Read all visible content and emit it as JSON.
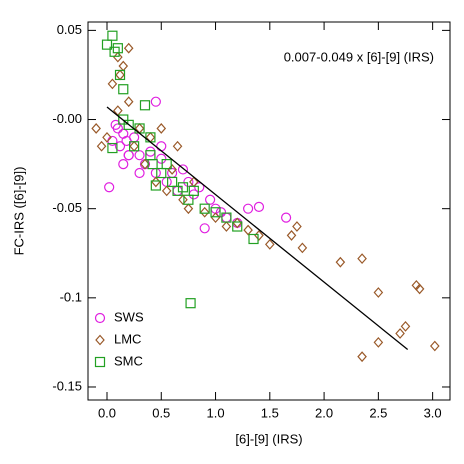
{
  "chart_data": {
    "type": "scatter",
    "annotation": "0.007-0.049 x [6]-[9] (IRS)",
    "xlabel": "[6]-[9] (IRS)",
    "ylabel": "FC-IRS ([6]-[9])",
    "xlim": [
      -0.175,
      3.16
    ],
    "ylim": [
      -0.1573,
      0.0547
    ],
    "xticks": [
      {
        "value": 0,
        "label": "0.0"
      },
      0.5,
      {
        "value": 1,
        "label": "1.0"
      },
      1.5,
      {
        "value": 2,
        "label": "2.0"
      },
      2.5,
      {
        "value": 3,
        "label": "3.0"
      }
    ],
    "yticks": [
      0.05,
      {
        "value": 0,
        "label": "-0.00"
      },
      -0.05,
      -0.1,
      -0.15
    ],
    "legend": "lower left",
    "fit": {
      "color": "#000000",
      "x": [
        0,
        2.77
      ],
      "y": [
        0.007,
        -0.129
      ]
    },
    "series": [
      {
        "name": "SWS",
        "color": "#e020e0",
        "marker": "circle",
        "x": [
          0.02,
          0.05,
          0.08,
          0.1,
          0.12,
          0.15,
          0.18,
          0.2,
          0.25,
          0.3,
          0.35,
          0.4,
          0.45,
          0.5,
          0.55,
          0.6,
          0.65,
          0.7,
          0.75,
          0.8,
          0.85,
          0.9,
          0.95,
          1.0,
          1.05,
          1.1,
          1.2,
          1.3,
          1.4,
          1.65,
          0.3,
          0.5,
          0.45,
          0.2,
          0.15
        ],
        "y": [
          -0.038,
          -0.012,
          -0.003,
          -0.005,
          -0.015,
          -0.008,
          -0.012,
          -0.02,
          -0.01,
          -0.02,
          -0.025,
          -0.018,
          -0.03,
          -0.022,
          -0.035,
          -0.03,
          -0.04,
          -0.028,
          -0.035,
          -0.042,
          -0.038,
          -0.061,
          -0.045,
          -0.05,
          -0.052,
          -0.055,
          -0.058,
          -0.05,
          -0.049,
          -0.055,
          -0.03,
          -0.015,
          0.01,
          -0.02,
          -0.025
        ]
      },
      {
        "name": "LMC",
        "color": "#9a5a2a",
        "marker": "diamond",
        "x": [
          -0.1,
          -0.05,
          0.0,
          0.05,
          0.1,
          0.12,
          0.15,
          0.2,
          0.25,
          0.3,
          0.35,
          0.4,
          0.45,
          0.5,
          0.55,
          0.6,
          0.7,
          0.75,
          0.8,
          0.9,
          1.0,
          1.1,
          1.2,
          1.3,
          1.4,
          1.5,
          1.7,
          1.75,
          1.8,
          2.15,
          2.35,
          2.35,
          2.5,
          2.5,
          2.7,
          2.75,
          2.85,
          2.88,
          3.02,
          0.1,
          0.2,
          0.65
        ],
        "y": [
          -0.005,
          -0.015,
          -0.01,
          0.02,
          0.035,
          0.025,
          0.03,
          0.01,
          -0.015,
          -0.005,
          -0.025,
          -0.01,
          -0.035,
          -0.005,
          -0.04,
          -0.028,
          -0.045,
          -0.05,
          -0.035,
          -0.052,
          -0.055,
          -0.06,
          -0.058,
          -0.062,
          -0.065,
          -0.07,
          -0.065,
          -0.06,
          -0.072,
          -0.08,
          -0.078,
          -0.133,
          -0.097,
          -0.125,
          -0.12,
          -0.116,
          -0.093,
          -0.095,
          -0.127,
          0.005,
          0.04,
          -0.015
        ]
      },
      {
        "name": "SMC",
        "color": "#22a022",
        "marker": "square",
        "x": [
          0.0,
          0.05,
          0.07,
          0.1,
          0.12,
          0.15,
          0.2,
          0.25,
          0.3,
          0.35,
          0.4,
          0.42,
          0.45,
          0.5,
          0.55,
          0.6,
          0.65,
          0.7,
          0.75,
          0.8,
          0.9,
          1.0,
          1.1,
          1.2,
          1.35,
          0.77,
          0.05,
          0.4,
          0.15
        ],
        "y": [
          0.042,
          0.047,
          0.038,
          0.04,
          0.025,
          0.0,
          -0.003,
          -0.015,
          -0.005,
          0.008,
          -0.02,
          -0.025,
          -0.037,
          -0.03,
          -0.025,
          -0.035,
          -0.04,
          -0.038,
          -0.045,
          -0.04,
          -0.05,
          -0.052,
          -0.055,
          -0.06,
          -0.067,
          -0.103,
          -0.016,
          -0.01,
          0.017
        ]
      }
    ]
  }
}
